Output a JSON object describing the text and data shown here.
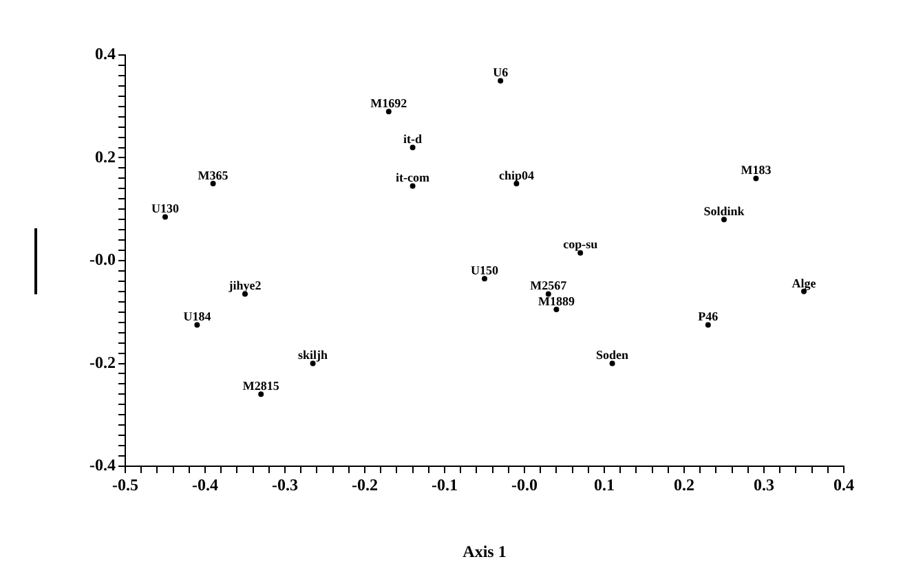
{
  "chart_data": {
    "type": "scatter",
    "xlabel": "Axis 1",
    "marker": "circle",
    "series": [
      {
        "name": "M1692",
        "color": "#000000",
        "x": [
          -0.17
        ],
        "values": [
          0.29
        ]
      },
      {
        "name": "it-d",
        "color": "#000000",
        "x": [
          -0.14
        ],
        "values": [
          0.22
        ]
      },
      {
        "name": "it-com",
        "color": "#000000",
        "x": [
          -0.14
        ],
        "values": [
          0.145
        ]
      },
      {
        "name": "M365",
        "color": "#000000",
        "x": [
          -0.39
        ],
        "values": [
          0.15
        ]
      },
      {
        "name": "U130",
        "color": "#000000",
        "x": [
          -0.45
        ],
        "values": [
          0.085
        ]
      },
      {
        "name": "U6",
        "color": "#000000",
        "x": [
          -0.03
        ],
        "values": [
          0.35
        ]
      },
      {
        "name": "chip04",
        "color": "#000000",
        "x": [
          -0.01
        ],
        "values": [
          0.15
        ]
      },
      {
        "name": "M183",
        "color": "#000000",
        "x": [
          0.29
        ],
        "values": [
          0.16
        ]
      },
      {
        "name": "Soldink",
        "color": "#000000",
        "x": [
          0.25
        ],
        "values": [
          0.08
        ]
      },
      {
        "name": "cop-su",
        "color": "#000000",
        "x": [
          0.07
        ],
        "values": [
          0.015
        ]
      },
      {
        "name": "U150",
        "color": "#000000",
        "x": [
          -0.05
        ],
        "values": [
          -0.035
        ]
      },
      {
        "name": "M2567",
        "color": "#000000",
        "x": [
          0.03
        ],
        "values": [
          -0.065
        ]
      },
      {
        "name": "M1889",
        "color": "#000000",
        "x": [
          0.04
        ],
        "values": [
          -0.095
        ]
      },
      {
        "name": "Alge",
        "color": "#000000",
        "x": [
          0.35
        ],
        "values": [
          -0.06
        ]
      },
      {
        "name": "P46",
        "color": "#000000",
        "x": [
          0.23
        ],
        "values": [
          -0.125
        ]
      },
      {
        "name": "Soden",
        "color": "#000000",
        "x": [
          0.11
        ],
        "values": [
          -0.2
        ]
      },
      {
        "name": "jihye2",
        "color": "#000000",
        "x": [
          -0.35
        ],
        "values": [
          -0.065
        ]
      },
      {
        "name": "U184",
        "color": "#000000",
        "x": [
          -0.41
        ],
        "values": [
          -0.125
        ]
      },
      {
        "name": "skiljh",
        "color": "#000000",
        "x": [
          -0.265
        ],
        "values": [
          -0.2
        ]
      },
      {
        "name": "M2815",
        "color": "#000000",
        "x": [
          -0.33
        ],
        "values": [
          -0.26
        ]
      }
    ],
    "xlim": [
      -0.5,
      0.4
    ],
    "xticks": [
      -0.5,
      {
        "value": -0.48,
        "label": null
      },
      {
        "value": -0.46,
        "label": null
      },
      {
        "value": -0.44,
        "label": null
      },
      {
        "value": -0.42,
        "label": null
      },
      -0.4,
      {
        "value": -0.38,
        "label": null
      },
      {
        "value": -0.36,
        "label": null
      },
      {
        "value": -0.34,
        "label": null
      },
      {
        "value": -0.32,
        "label": null
      },
      -0.3,
      {
        "value": -0.28,
        "label": null
      },
      {
        "value": -0.26,
        "label": null
      },
      {
        "value": -0.24,
        "label": null
      },
      {
        "value": -0.22,
        "label": null
      },
      -0.2,
      {
        "value": -0.18,
        "label": null
      },
      {
        "value": -0.16,
        "label": null
      },
      {
        "value": -0.14,
        "label": null
      },
      {
        "value": -0.12,
        "label": null
      },
      -0.1,
      {
        "value": -0.08,
        "label": null
      },
      {
        "value": -0.06,
        "label": null
      },
      {
        "value": -0.04,
        "label": null
      },
      {
        "value": -0.02,
        "label": null
      },
      {
        "value": 0,
        "label": "-0.0"
      },
      {
        "value": 0.02,
        "label": null
      },
      {
        "value": 0.04,
        "label": null
      },
      {
        "value": 0.06,
        "label": null
      },
      {
        "value": 0.08,
        "label": null
      },
      0.1,
      {
        "value": 0.12,
        "label": null
      },
      {
        "value": 0.14,
        "label": null
      },
      {
        "value": 0.16,
        "label": null
      },
      {
        "value": 0.18,
        "label": null
      },
      0.2,
      {
        "value": 0.22,
        "label": null
      },
      {
        "value": 0.24,
        "label": null
      },
      {
        "value": 0.26,
        "label": null
      },
      {
        "value": 0.28,
        "label": null
      },
      0.3,
      {
        "value": 0.32,
        "label": null
      },
      {
        "value": 0.34,
        "label": null
      },
      {
        "value": 0.36,
        "label": null
      },
      {
        "value": 0.38,
        "label": null
      },
      0.4
    ],
    "ylim": [
      -0.4,
      0.4
    ],
    "yticks": [
      -0.4,
      {
        "value": -0.38,
        "label": null
      },
      {
        "value": -0.36,
        "label": null
      },
      {
        "value": -0.34,
        "label": null
      },
      {
        "value": -0.32,
        "label": null
      },
      {
        "value": -0.3,
        "label": null
      },
      {
        "value": -0.28,
        "label": null
      },
      {
        "value": -0.26,
        "label": null
      },
      {
        "value": -0.24,
        "label": null
      },
      {
        "value": -0.22,
        "label": null
      },
      -0.2,
      {
        "value": -0.18,
        "label": null
      },
      {
        "value": -0.16,
        "label": null
      },
      {
        "value": -0.14,
        "label": null
      },
      {
        "value": -0.12,
        "label": null
      },
      {
        "value": -0.1,
        "label": null
      },
      {
        "value": -0.08,
        "label": null
      },
      {
        "value": -0.06,
        "label": null
      },
      {
        "value": -0.04,
        "label": null
      },
      {
        "value": -0.02,
        "label": null
      },
      {
        "value": 0,
        "label": "-0.0"
      },
      {
        "value": 0.02,
        "label": null
      },
      {
        "value": 0.04,
        "label": null
      },
      {
        "value": 0.06,
        "label": null
      },
      {
        "value": 0.08,
        "label": null
      },
      {
        "value": 0.1,
        "label": null
      },
      {
        "value": 0.12,
        "label": null
      },
      {
        "value": 0.14,
        "label": null
      },
      {
        "value": 0.16,
        "label": null
      },
      {
        "value": 0.18,
        "label": null
      },
      0.2,
      {
        "value": 0.22,
        "label": null
      },
      {
        "value": 0.24,
        "label": null
      },
      {
        "value": 0.26,
        "label": null
      },
      {
        "value": 0.28,
        "label": null
      },
      {
        "value": 0.3,
        "label": null
      },
      {
        "value": 0.32,
        "label": null
      },
      {
        "value": 0.34,
        "label": null
      },
      {
        "value": 0.36,
        "label": null
      },
      {
        "value": 0.38,
        "label": null
      },
      0.4
    ]
  }
}
